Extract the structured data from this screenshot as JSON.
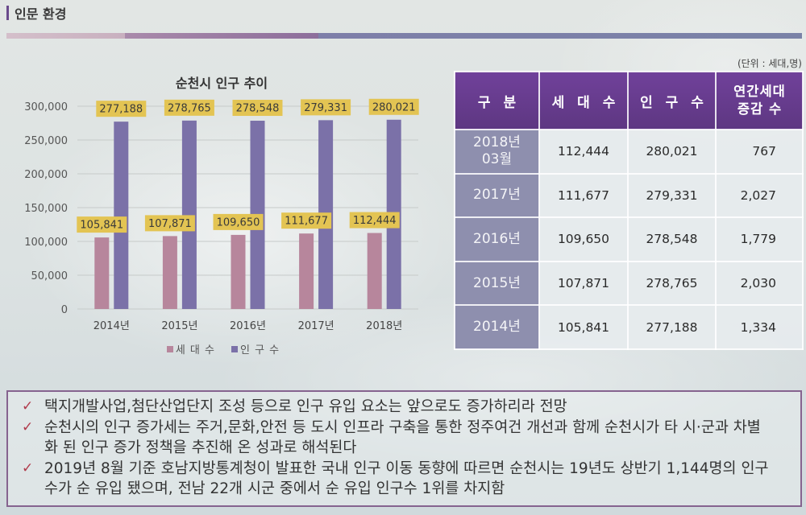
{
  "header": {
    "title": "인문 환경"
  },
  "chart_data": {
    "type": "bar",
    "title": "순천시 인구 추이",
    "categories": [
      "2014년",
      "2015년",
      "2016년",
      "2017년",
      "2018년"
    ],
    "series": [
      {
        "name": "세 대 수",
        "values": [
          105841,
          107871,
          109650,
          111677,
          112444
        ],
        "data_labels": [
          "105,841",
          "107,871",
          "109,650",
          "111,677",
          "112,444"
        ],
        "color": "#b7869c"
      },
      {
        "name": "인 구 수",
        "values": [
          277188,
          278765,
          278548,
          279331,
          280021
        ],
        "data_labels": [
          "277,188",
          "278,765",
          "278,548",
          "279,331",
          "280,021"
        ],
        "color": "#7b71a8"
      }
    ],
    "ylim": [
      0,
      300000
    ],
    "yticks": [
      0,
      50000,
      100000,
      150000,
      200000,
      250000,
      300000
    ],
    "ytick_labels": [
      "0",
      "50,000",
      "100,000",
      "150,000",
      "200,000",
      "250,000",
      "300,000"
    ],
    "grid": true,
    "legend": "bottom",
    "data_label_color": "#e3c453"
  },
  "table": {
    "unit_note": "(단위 : 세대,명)",
    "headers": [
      "구 분",
      "세 대 수",
      "인 구 수",
      "연간세대\n증감 수"
    ],
    "rows": [
      [
        "2018년\n03월",
        "112,444",
        "280,021",
        "767"
      ],
      [
        "2017년",
        "111,677",
        "279,331",
        "2,027"
      ],
      [
        "2016년",
        "109,650",
        "278,548",
        "1,779"
      ],
      [
        "2015년",
        "107,871",
        "278,765",
        "2,030"
      ],
      [
        "2014년",
        "105,841",
        "277,188",
        "1,334"
      ]
    ]
  },
  "notes": {
    "bullet_icon": "check-icon",
    "items": [
      "택지개발사업,첨단산업단지 조성 등으로 인구 유입 요소는 앞으로도 증가하리라 전망",
      "순천시의 인구 증가세는 주거,문화,안전 등 도시 인프라 구축을 통한 정주여건 개선과 함께 순천시가 타 시·군과 차별화 된 인구 증가 정책을 추진해 온 성과로 해석된다",
      "2019년 8월 기준 호남지방통계청이 발표한 국내 인구 이동 동향에 따르면 순천시는 19년도 상반기 1,144명의 인구수가 순 유입 됐으며, 전남 22개 시군 중에서 순 유입 인구수 1위를 차지함"
    ]
  }
}
